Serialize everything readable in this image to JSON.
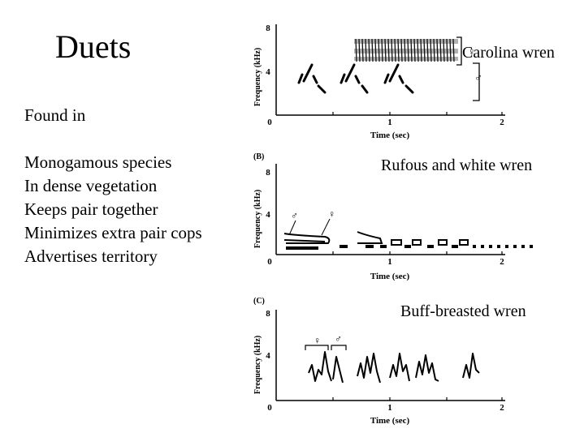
{
  "slide": {
    "title": "Duets",
    "bullets": [
      "Found in",
      "",
      "Monogamous species",
      "In dense vegetation",
      "Keeps pair together",
      "Minimizes extra pair cops",
      "Advertises territory"
    ]
  },
  "panels": [
    {
      "letter": "",
      "species": "Carolina wren",
      "ylabel": "Frequency (kHz)",
      "xlabel": "Time (sec)",
      "yticks": [
        "0",
        "4",
        "8"
      ],
      "xticks": [
        "0",
        "1",
        "2"
      ],
      "sex_marks": [
        "♀",
        "♂"
      ]
    },
    {
      "letter": "(B)",
      "species": "Rufous and white wren",
      "ylabel": "Frequency (kHz)",
      "xlabel": "Time (sec)",
      "yticks": [
        "0",
        "4",
        "8"
      ],
      "xticks": [
        "0",
        "1",
        "2"
      ],
      "sex_marks": [
        "♂",
        "♀"
      ]
    },
    {
      "letter": "(C)",
      "species": "Buff-breasted wren",
      "ylabel": "Frequency (kHz)",
      "xlabel": "Time (sec)",
      "yticks": [
        "0",
        "4",
        "8"
      ],
      "xticks": [
        "0",
        "1",
        "2"
      ],
      "sex_marks": [
        "♀",
        "♂"
      ]
    }
  ]
}
